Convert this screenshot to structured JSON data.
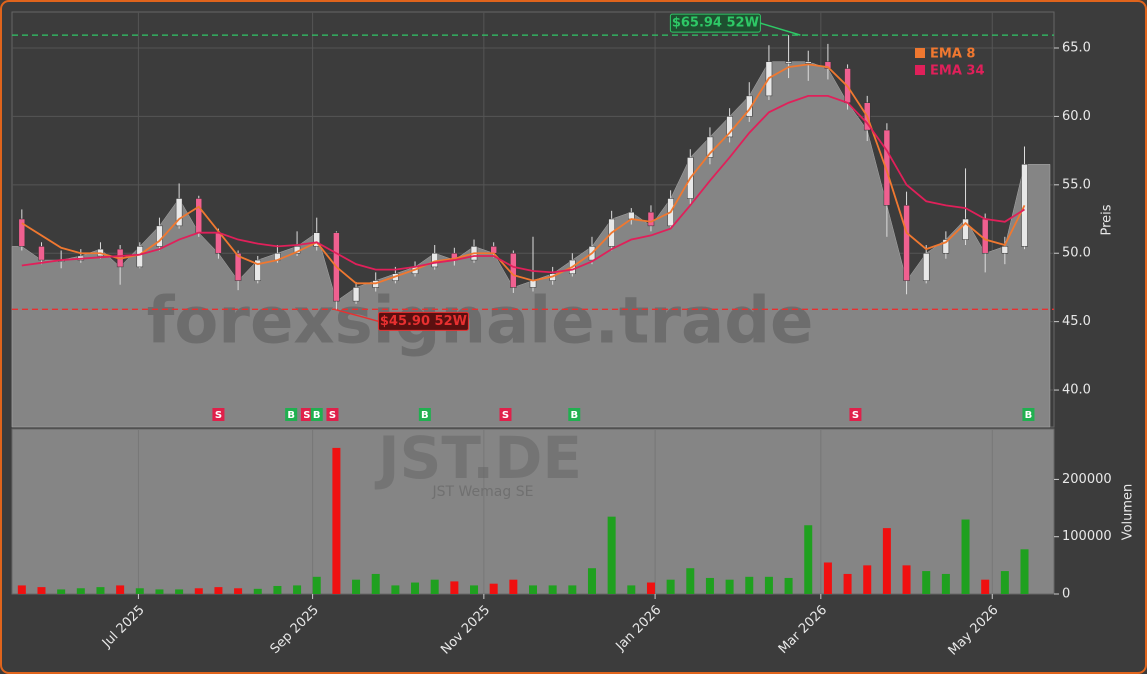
{
  "chart_data": {
    "type": "candlestick",
    "xlim": [
      -0.5,
      52.5
    ],
    "xticks": [
      {
        "value": 5.93,
        "label": "Jul 2025"
      },
      {
        "value": 14.79,
        "label": "Sep 2025"
      },
      {
        "value": 23.5,
        "label": "Nov 2025"
      },
      {
        "value": 32.21,
        "label": "Jan 2026"
      },
      {
        "value": 40.64,
        "label": "Mar 2026"
      },
      {
        "value": 49.36,
        "label": "May 2026"
      }
    ],
    "ylim": [
      37.3,
      67.63
    ],
    "yticks": [
      {
        "value": 40,
        "label": "40.0"
      },
      {
        "value": 45,
        "label": "45.0"
      },
      {
        "value": 50,
        "label": "50.0"
      },
      {
        "value": 55,
        "label": "55.0"
      },
      {
        "value": 60,
        "label": "60.0"
      },
      {
        "value": 65,
        "label": "65.0"
      }
    ],
    "ylabel": "Preis",
    "grid": true,
    "up_color": "#e8e8e8",
    "down_color": "#f06090",
    "area_color": "#858585",
    "open": [
      52.5,
      50.5,
      49.5,
      49.5,
      49.8,
      50.3,
      49.0,
      50.5,
      52,
      54,
      51.5,
      50,
      48,
      49.5,
      50,
      50.5,
      51.5,
      46.5,
      47.5,
      48,
      48.5,
      49,
      50,
      49.5,
      50.5,
      50,
      47.5,
      48,
      48.5,
      49.5,
      50.5,
      52.5,
      53,
      52,
      54,
      57,
      58.5,
      60,
      61.5,
      64,
      64,
      64,
      63.5,
      61,
      59,
      53.5,
      48,
      50,
      51,
      52.5,
      50,
      50.5
    ],
    "high": [
      53.2,
      50.8,
      50.2,
      50.3,
      50.8,
      50.6,
      50.8,
      52.6,
      55.1,
      54.2,
      51.8,
      50.2,
      49.8,
      50.6,
      51.6,
      52.6,
      51.6,
      47.9,
      48.6,
      49,
      49.4,
      50.6,
      50.4,
      51,
      50.8,
      50.2,
      51.2,
      49,
      50,
      51.2,
      53.1,
      53.3,
      53.5,
      54.6,
      57.6,
      59.2,
      60.6,
      62.5,
      65.2,
      65.94,
      64.8,
      65.3,
      63.8,
      61.5,
      59.5,
      54.5,
      50.6,
      51.6,
      56.2,
      52.9,
      51.2,
      57.8
    ],
    "low": [
      50.2,
      49.2,
      48.9,
      49.3,
      49.6,
      47.7,
      48.9,
      50.2,
      51.8,
      51.2,
      49.6,
      47.3,
      47.8,
      49.3,
      49.8,
      50.2,
      45.9,
      46.3,
      47.2,
      47.8,
      48.3,
      48.8,
      49.1,
      49.3,
      49.7,
      47.1,
      47.2,
      47.7,
      48.3,
      49.2,
      50.2,
      52.1,
      51.6,
      51.8,
      53.6,
      56.5,
      58.1,
      59.6,
      61.2,
      62.8,
      62.6,
      62.7,
      60.5,
      58.2,
      51.2,
      47.0,
      47.8,
      49.6,
      50.6,
      48.6,
      49.2,
      50.3
    ],
    "close": [
      50.5,
      49.5,
      49.5,
      49.8,
      50.3,
      49.0,
      50.5,
      52,
      54,
      51.5,
      50,
      48,
      49.5,
      50,
      50.5,
      51.5,
      46.5,
      47.5,
      48,
      48.5,
      49,
      50,
      49.5,
      50.5,
      50,
      47.5,
      48,
      48.5,
      49.5,
      50.5,
      52.5,
      53,
      52,
      54,
      57,
      58.5,
      60,
      61.5,
      64,
      64,
      64,
      63.5,
      61,
      59,
      53.5,
      48,
      50,
      51,
      52.5,
      50,
      50.5,
      56.5
    ],
    "series": [
      {
        "name": "EMA 8",
        "color": "#f07830",
        "values": [
          52.2,
          51.3,
          50.4,
          50,
          50,
          49.6,
          49.9,
          50.9,
          52.5,
          53.4,
          51.6,
          49.8,
          49.2,
          49.5,
          50.1,
          50.8,
          49,
          47.8,
          47.8,
          48.3,
          48.8,
          49.4,
          49.6,
          50,
          50,
          48.4,
          48,
          48.3,
          49,
          50,
          51.5,
          52.5,
          52.3,
          53,
          55.5,
          57.3,
          58.8,
          60.5,
          62.8,
          63.6,
          63.8,
          63.6,
          62.2,
          60,
          56,
          51.5,
          50.3,
          50.8,
          52.2,
          51,
          50.6,
          53.5
        ]
      },
      {
        "name": "EMA 34",
        "color": "#e0205a",
        "values": [
          49.1,
          49.3,
          49.5,
          49.6,
          49.7,
          49.8,
          49.9,
          50.3,
          51,
          51.5,
          51.5,
          51,
          50.7,
          50.5,
          50.6,
          50.8,
          50,
          49.2,
          48.8,
          48.8,
          49,
          49.3,
          49.5,
          49.8,
          49.8,
          49,
          48.7,
          48.6,
          48.8,
          49.4,
          50.3,
          51,
          51.3,
          51.8,
          53.5,
          55.3,
          57,
          58.8,
          60.3,
          61,
          61.5,
          61.5,
          61,
          59.5,
          57.5,
          55,
          53.8,
          53.5,
          53.3,
          52.5,
          52.3,
          53.2
        ]
      }
    ],
    "hlines": [
      {
        "value": 65.94,
        "label": "$65.94 52W",
        "color": "#2ec866",
        "x": 39.6
      },
      {
        "value": 45.9,
        "label": "$45.90 52W",
        "color": "#e83030",
        "x": 15.9
      }
    ],
    "signals": [
      {
        "x": 10.0,
        "label": "S",
        "color": "#e0204a"
      },
      {
        "x": 13.7,
        "label": "B",
        "color": "#20b050"
      },
      {
        "x": 14.5,
        "label": "S",
        "color": "#e0204a"
      },
      {
        "x": 15.0,
        "label": "B",
        "color": "#20b050"
      },
      {
        "x": 15.8,
        "label": "S",
        "color": "#e0204a"
      },
      {
        "x": 20.5,
        "label": "B",
        "color": "#20b050"
      },
      {
        "x": 24.6,
        "label": "S",
        "color": "#e0204a"
      },
      {
        "x": 28.1,
        "label": "B",
        "color": "#20b050"
      },
      {
        "x": 42.4,
        "label": "S",
        "color": "#e0204a"
      },
      {
        "x": 51.2,
        "label": "B",
        "color": "#20b050"
      }
    ],
    "volume": {
      "ylabel": "Volumen",
      "ylim": [
        0,
        288000
      ],
      "yticks": [
        0,
        100000,
        200000
      ],
      "up_color": "#1fa01f",
      "down_color": "#f01010",
      "values": [
        15000,
        12000,
        8000,
        10000,
        12000,
        15000,
        10000,
        8000,
        8000,
        10000,
        12000,
        10000,
        9000,
        14000,
        15000,
        30000,
        255000,
        25000,
        35000,
        15000,
        20000,
        25000,
        22000,
        15000,
        18000,
        25000,
        15000,
        15000,
        15000,
        45000,
        135000,
        15000,
        20000,
        25000,
        45000,
        28000,
        25000,
        30000,
        30000,
        28000,
        120000,
        55000,
        35000,
        50000,
        115000,
        50000,
        40000,
        35000,
        130000,
        25000,
        40000,
        78000
      ]
    },
    "watermarks": [
      "forexsignale.trade",
      "JST.DE",
      "JST Wemag SE"
    ]
  }
}
